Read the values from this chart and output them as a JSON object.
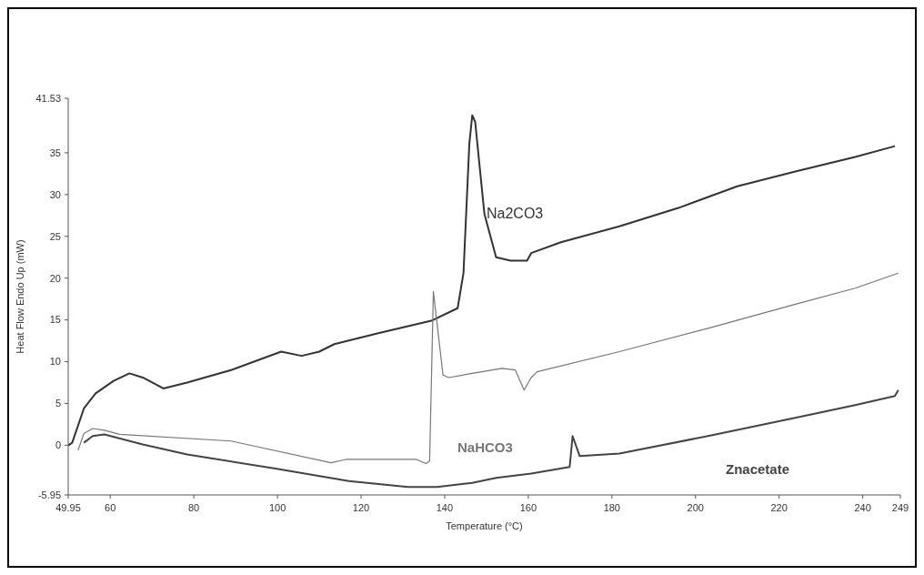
{
  "chart_data": {
    "type": "line",
    "xlabel": "Temperature (°C)",
    "ylabel": "Heat Flow Endo Up (mW)",
    "xlim": [
      49.95,
      249
    ],
    "xticks": [
      49.95,
      60,
      80,
      100,
      120,
      140,
      160,
      180,
      200,
      220,
      240,
      249
    ],
    "ylim": [
      -5.95,
      41.53
    ],
    "yticks": [
      -5.95,
      0,
      5,
      10,
      15,
      20,
      25,
      30,
      35,
      41.53
    ],
    "grid": false,
    "line_style": "solid",
    "series": [
      {
        "name": "Na2CO3",
        "color": "#333333",
        "x": [
          50,
          50.9,
          53.7,
          56.5,
          60.8,
          64.6,
          67.8,
          72.7,
          78.4,
          88.9,
          96,
          100.9,
          105.8,
          110,
          113.6,
          124.1,
          136.8,
          143.1,
          144.5,
          145.9,
          146.6,
          147.3,
          149.5,
          152.3,
          155.8,
          159.7,
          160.7,
          167.8,
          181.8,
          195.9,
          210,
          224.1,
          238.2,
          247.7
        ],
        "values": [
          0,
          0.3,
          4.4,
          6.2,
          7.7,
          8.6,
          8.1,
          6.8,
          7.5,
          9,
          10.3,
          11.2,
          10.7,
          11.2,
          12.1,
          13.4,
          14.9,
          16.4,
          20.6,
          36.1,
          39.5,
          38.7,
          27.7,
          22.5,
          22.1,
          22.1,
          23,
          24.3,
          26.2,
          28.4,
          31,
          32.8,
          34.5,
          35.8
        ]
      },
      {
        "name": "NaHCO3",
        "color": "#777777",
        "x": [
          52.3,
          53.7,
          55.8,
          58.6,
          62.2,
          88.9,
          112.8,
          116.4,
          133.3,
          135.5,
          136.4,
          137.3,
          137.8,
          139.6,
          141,
          146.6,
          153.7,
          156.9,
          159,
          160.7,
          162.1,
          181.8,
          203,
          224.1,
          238.2,
          248.5
        ],
        "values": [
          -0.6,
          1.4,
          2,
          1.8,
          1.3,
          0.5,
          -2.1,
          -1.7,
          -1.7,
          -2.2,
          -1.9,
          18.4,
          16.2,
          8.4,
          8.1,
          8.6,
          9.2,
          9,
          6.6,
          8.1,
          8.8,
          11.2,
          14,
          16.9,
          18.8,
          20.6
        ]
      },
      {
        "name": "Znacetate",
        "color": "#444444",
        "x": [
          53.7,
          55.8,
          58.6,
          67.8,
          78.4,
          99.5,
          117.1,
          131.2,
          138.2,
          146.6,
          152.3,
          160.7,
          169.9,
          170.6,
          172.3,
          181.8,
          203,
          224.1,
          238.2,
          247.7,
          248.5
        ],
        "values": [
          0.3,
          1.1,
          1.3,
          0.1,
          -1.1,
          -2.8,
          -4.3,
          -5,
          -5,
          -4.5,
          -3.9,
          -3.4,
          -2.6,
          1.1,
          -1.3,
          -1,
          1.1,
          3.3,
          4.8,
          5.9,
          6.6
        ]
      }
    ]
  }
}
